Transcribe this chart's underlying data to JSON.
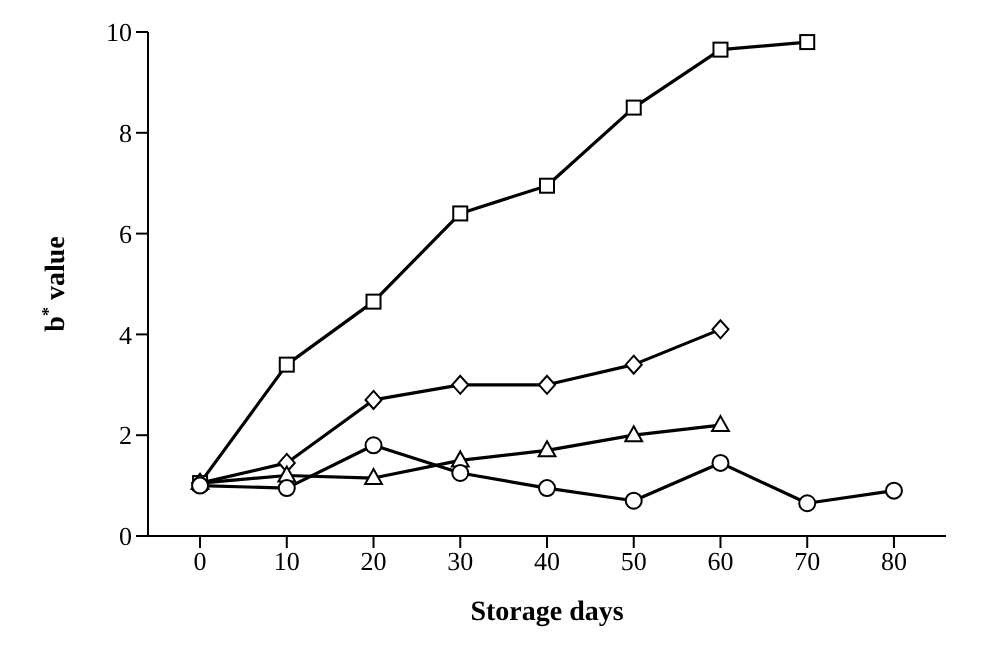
{
  "chart_data": {
    "type": "line",
    "xlabel": "Storage days",
    "ylabel": "b$^{*}$ value",
    "xlim": [
      -6,
      86
    ],
    "xticks": [
      0,
      10,
      20,
      30,
      40,
      50,
      60,
      70,
      80
    ],
    "ylim": [
      0,
      10
    ],
    "yticks": [
      0,
      2,
      4,
      6,
      8,
      10
    ],
    "grid": false,
    "legend": false,
    "series": [
      {
        "color": "#000000",
        "marker": "square",
        "x": [
          0,
          10,
          20,
          30,
          40,
          50,
          60,
          70
        ],
        "values": [
          1.05,
          3.4,
          4.65,
          6.4,
          6.95,
          8.5,
          9.65,
          9.8
        ]
      },
      {
        "color": "#000000",
        "marker": "diamond",
        "x": [
          0,
          10,
          20,
          30,
          40,
          50,
          60
        ],
        "values": [
          1.05,
          1.45,
          2.7,
          3,
          3,
          3.4,
          4.1
        ]
      },
      {
        "color": "#000000",
        "marker": "triangle",
        "x": [
          0,
          10,
          20,
          30,
          40,
          50,
          60
        ],
        "values": [
          1.05,
          1.2,
          1.15,
          1.5,
          1.7,
          2,
          2.2
        ]
      },
      {
        "color": "#000000",
        "marker": "circle",
        "x": [
          0,
          10,
          20,
          30,
          40,
          50,
          60,
          70,
          80
        ],
        "values": [
          1,
          0.95,
          1.8,
          1.25,
          0.95,
          0.7,
          1.45,
          0.65,
          0.9
        ]
      }
    ]
  }
}
